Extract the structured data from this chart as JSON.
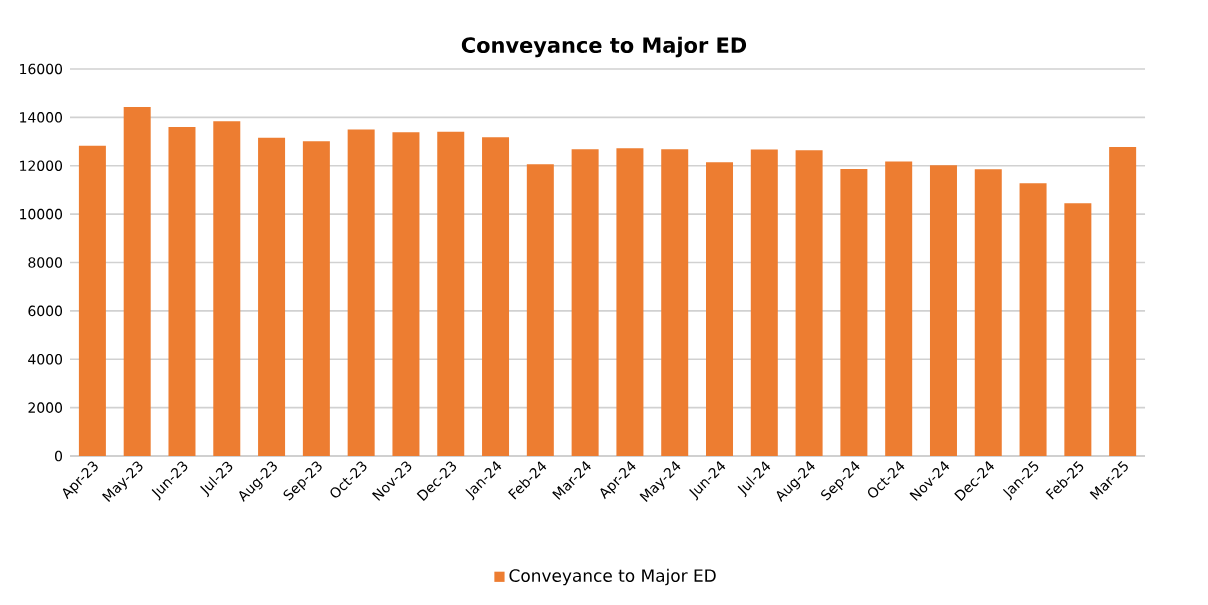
{
  "chart_data": {
    "type": "bar",
    "title": "Conveyance to Major ED",
    "categories": [
      "Apr-23",
      "May-23",
      "Jun-23",
      "Jul-23",
      "Aug-23",
      "Sep-23",
      "Oct-23",
      "Nov-23",
      "Dec-23",
      "Jan-24",
      "Feb-24",
      "Mar-24",
      "Apr-24",
      "May-24",
      "Jun-24",
      "Jul-24",
      "Aug-24",
      "Sep-24",
      "Oct-24",
      "Nov-24",
      "Dec-24",
      "Jan-25",
      "Feb-25",
      "Mar-25"
    ],
    "series": [
      {
        "name": "Conveyance to Major ED",
        "color": "#ed7d31",
        "values": [
          12830,
          14430,
          13600,
          13840,
          13160,
          13010,
          13500,
          13380,
          13410,
          13180,
          12060,
          12680,
          12720,
          12680,
          12140,
          12670,
          12640,
          11870,
          12180,
          12020,
          11850,
          11280,
          10450,
          12770
        ]
      }
    ],
    "ylim": [
      0,
      16000
    ],
    "yticks": [
      0,
      2000,
      4000,
      6000,
      8000,
      10000,
      12000,
      14000,
      16000
    ],
    "grid": "y",
    "legend": "bottom"
  }
}
